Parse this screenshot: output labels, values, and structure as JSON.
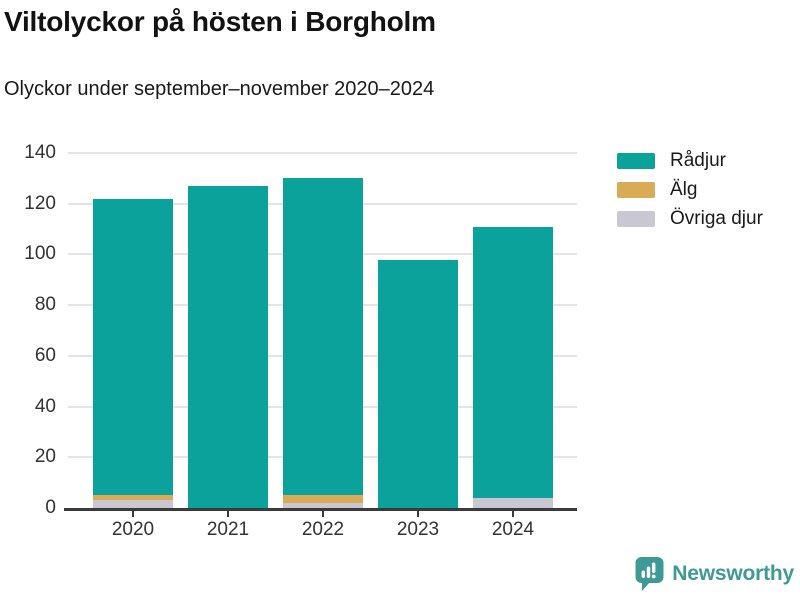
{
  "title": "Viltolyckor på hösten i Borgholm",
  "subtitle": "Olyckor under september–november 2020–2024",
  "chart_data": {
    "type": "bar",
    "stacked": true,
    "title": "Viltolyckor på hösten i Borgholm",
    "subtitle": "Olyckor under september–november 2020–2024",
    "categories": [
      "2020",
      "2021",
      "2022",
      "2023",
      "2024"
    ],
    "series": [
      {
        "name": "Rådjur",
        "color": "#0aa29b",
        "values": [
          117,
          127,
          125,
          98,
          107
        ]
      },
      {
        "name": "Älg",
        "color": "#d9ab57",
        "values": [
          2,
          0,
          3,
          0,
          0
        ]
      },
      {
        "name": "Övriga djur",
        "color": "#c9c8d2",
        "values": [
          3,
          0,
          2,
          0,
          4
        ]
      }
    ],
    "stack_order_bottom_to_top": [
      "Övriga djur",
      "Älg",
      "Rådjur"
    ],
    "totals": [
      122,
      127,
      130,
      98,
      111
    ],
    "xlabel": "",
    "ylabel": "",
    "ylim": [
      0,
      140
    ],
    "yticks": [
      0,
      20,
      40,
      60,
      80,
      100,
      120,
      140
    ],
    "grid": true,
    "legend_position": "top-right"
  },
  "legend": {
    "items": [
      {
        "label": "Rådjur",
        "color": "#0aa29b"
      },
      {
        "label": "Älg",
        "color": "#d9ab57"
      },
      {
        "label": "Övriga djur",
        "color": "#c9c8d2"
      }
    ]
  },
  "footer": {
    "brand": "Newsworthy",
    "brand_color": "#3e9a94"
  },
  "colors": {
    "background": "#ffffff",
    "axis": "#3b3b3b",
    "gridline": "#e4e4e4",
    "tick_label": "#333333",
    "title": "#121212"
  }
}
